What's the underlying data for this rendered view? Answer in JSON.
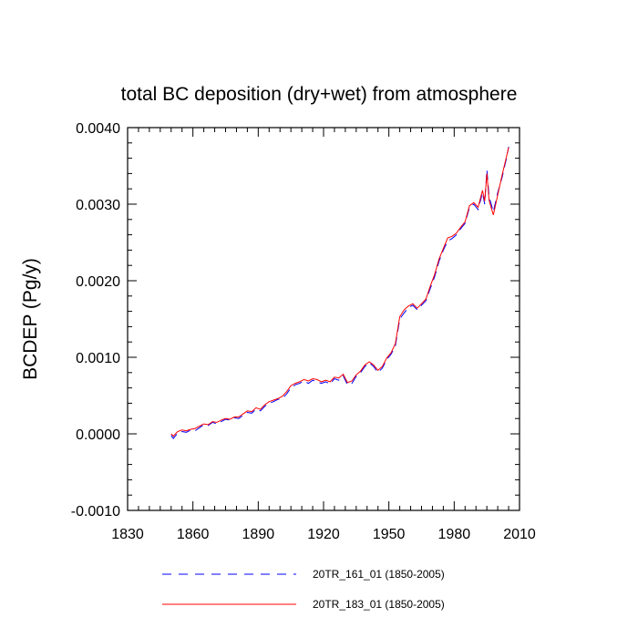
{
  "chart_data": {
    "type": "line",
    "title": "total BC deposition (dry+wet) from atmosphere",
    "ylabel": "BCDEP  (Pg/y)",
    "xlabel": "",
    "xlim": [
      1830,
      2010
    ],
    "ylim": [
      -0.001,
      0.004
    ],
    "x_ticks": [
      1830,
      1860,
      1890,
      1920,
      1950,
      1980,
      2010
    ],
    "x_tick_labels": [
      "1830",
      "1860",
      "1890",
      "1920",
      "1950",
      "1980",
      "2010"
    ],
    "y_ticks": [
      -0.001,
      0.0,
      0.001,
      0.002,
      0.003,
      0.004
    ],
    "y_tick_labels": [
      "-0.0010",
      "0.0000",
      "0.0010",
      "0.0020",
      "0.0030",
      "0.0040"
    ],
    "legend_position": "bottom",
    "series": [
      {
        "name": "20TR_161_01 (1850-2005)",
        "color": "#0000ff",
        "dash": "dashed",
        "points": [
          [
            1850,
            -2e-05
          ],
          [
            1851,
            -6e-05
          ],
          [
            1853,
            1e-05
          ],
          [
            1855,
            3e-05
          ],
          [
            1857,
            2e-05
          ],
          [
            1859,
            5e-05
          ],
          [
            1861,
            4e-05
          ],
          [
            1863,
            8e-05
          ],
          [
            1865,
            0.00012
          ],
          [
            1867,
            0.00011
          ],
          [
            1869,
            0.00015
          ],
          [
            1871,
            0.00013
          ],
          [
            1873,
            0.00016
          ],
          [
            1875,
            0.00019
          ],
          [
            1877,
            0.00018
          ],
          [
            1879,
            0.00021
          ],
          [
            1881,
            0.0002
          ],
          [
            1883,
            0.00024
          ],
          [
            1885,
            0.00028
          ],
          [
            1887,
            0.00027
          ],
          [
            1889,
            0.00032
          ],
          [
            1891,
            0.0003
          ],
          [
            1893,
            0.00036
          ],
          [
            1895,
            0.0004
          ],
          [
            1897,
            0.00042
          ],
          [
            1899,
            0.00045
          ],
          [
            1901,
            0.00046
          ],
          [
            1903,
            0.00052
          ],
          [
            1905,
            0.0006
          ],
          [
            1907,
            0.00064
          ],
          [
            1909,
            0.00066
          ],
          [
            1911,
            0.00069
          ],
          [
            1913,
            0.00066
          ],
          [
            1915,
            0.0007
          ],
          [
            1917,
            0.00068
          ],
          [
            1919,
            0.00066
          ],
          [
            1921,
            0.00068
          ],
          [
            1923,
            0.00065
          ],
          [
            1925,
            0.00072
          ],
          [
            1927,
            0.0007
          ],
          [
            1929,
            0.00076
          ],
          [
            1931,
            0.00064
          ],
          [
            1933,
            0.00066
          ],
          [
            1935,
            0.00075
          ],
          [
            1937,
            0.0008
          ],
          [
            1939,
            0.00088
          ],
          [
            1941,
            0.00093
          ],
          [
            1943,
            0.00088
          ],
          [
            1945,
            0.0008
          ],
          [
            1947,
            0.00086
          ],
          [
            1949,
            0.00097
          ],
          [
            1951,
            0.00104
          ],
          [
            1953,
            0.00115
          ],
          [
            1955,
            0.0015
          ],
          [
            1957,
            0.00158
          ],
          [
            1959,
            0.00165
          ],
          [
            1961,
            0.00168
          ],
          [
            1963,
            0.00162
          ],
          [
            1965,
            0.00168
          ],
          [
            1967,
            0.00174
          ],
          [
            1969,
            0.0019
          ],
          [
            1971,
            0.00205
          ],
          [
            1973,
            0.00225
          ],
          [
            1975,
            0.0024
          ],
          [
            1977,
            0.00252
          ],
          [
            1979,
            0.00255
          ],
          [
            1981,
            0.0026
          ],
          [
            1983,
            0.00268
          ],
          [
            1985,
            0.00275
          ],
          [
            1987,
            0.00296
          ],
          [
            1989,
            0.003
          ],
          [
            1991,
            0.00293
          ],
          [
            1993,
            0.00315
          ],
          [
            1994,
            0.003
          ],
          [
            1995,
            0.00345
          ],
          [
            1996,
            0.0031
          ],
          [
            1998,
            0.0029
          ],
          [
            2000,
            0.00315
          ],
          [
            2002,
            0.00335
          ],
          [
            2004,
            0.0036
          ],
          [
            2005,
            0.00375
          ]
        ]
      },
      {
        "name": "20TR_183_01 (1850-2005)",
        "color": "#ff0000",
        "dash": "solid",
        "points": [
          [
            1850,
            0.0
          ],
          [
            1851,
            -3e-05
          ],
          [
            1853,
            3e-05
          ],
          [
            1855,
            5e-05
          ],
          [
            1857,
            4e-05
          ],
          [
            1859,
            6e-05
          ],
          [
            1861,
            7e-05
          ],
          [
            1863,
            0.0001
          ],
          [
            1865,
            0.00013
          ],
          [
            1867,
            0.00012
          ],
          [
            1869,
            0.00016
          ],
          [
            1871,
            0.00015
          ],
          [
            1873,
            0.00018
          ],
          [
            1875,
            0.0002
          ],
          [
            1877,
            0.00019
          ],
          [
            1879,
            0.00022
          ],
          [
            1881,
            0.00022
          ],
          [
            1883,
            0.00026
          ],
          [
            1885,
            0.0003
          ],
          [
            1887,
            0.00029
          ],
          [
            1889,
            0.00034
          ],
          [
            1891,
            0.00032
          ],
          [
            1893,
            0.00038
          ],
          [
            1895,
            0.00042
          ],
          [
            1897,
            0.00044
          ],
          [
            1899,
            0.00046
          ],
          [
            1901,
            0.00049
          ],
          [
            1903,
            0.00055
          ],
          [
            1905,
            0.00063
          ],
          [
            1907,
            0.00066
          ],
          [
            1909,
            0.00068
          ],
          [
            1911,
            0.00071
          ],
          [
            1913,
            0.00069
          ],
          [
            1915,
            0.00072
          ],
          [
            1917,
            0.00071
          ],
          [
            1919,
            0.00068
          ],
          [
            1921,
            0.0007
          ],
          [
            1923,
            0.00068
          ],
          [
            1925,
            0.00074
          ],
          [
            1927,
            0.00073
          ],
          [
            1929,
            0.00078
          ],
          [
            1931,
            0.00067
          ],
          [
            1933,
            0.00069
          ],
          [
            1935,
            0.00077
          ],
          [
            1937,
            0.00082
          ],
          [
            1939,
            0.0009
          ],
          [
            1941,
            0.00094
          ],
          [
            1943,
            0.0009
          ],
          [
            1945,
            0.00083
          ],
          [
            1947,
            0.00088
          ],
          [
            1949,
            0.00099
          ],
          [
            1951,
            0.00106
          ],
          [
            1953,
            0.00118
          ],
          [
            1955,
            0.00153
          ],
          [
            1957,
            0.00162
          ],
          [
            1959,
            0.00167
          ],
          [
            1961,
            0.0017
          ],
          [
            1963,
            0.00164
          ],
          [
            1965,
            0.0017
          ],
          [
            1967,
            0.00176
          ],
          [
            1969,
            0.00193
          ],
          [
            1971,
            0.00208
          ],
          [
            1973,
            0.00228
          ],
          [
            1975,
            0.00242
          ],
          [
            1977,
            0.00256
          ],
          [
            1979,
            0.00258
          ],
          [
            1981,
            0.00262
          ],
          [
            1983,
            0.0027
          ],
          [
            1985,
            0.00277
          ],
          [
            1987,
            0.00298
          ],
          [
            1989,
            0.00302
          ],
          [
            1991,
            0.00296
          ],
          [
            1993,
            0.00318
          ],
          [
            1994,
            0.00304
          ],
          [
            1995,
            0.0034
          ],
          [
            1996,
            0.00305
          ],
          [
            1998,
            0.00286
          ],
          [
            2000,
            0.00312
          ],
          [
            2002,
            0.00338
          ],
          [
            2004,
            0.00362
          ],
          [
            2005,
            0.00374
          ]
        ]
      }
    ]
  }
}
